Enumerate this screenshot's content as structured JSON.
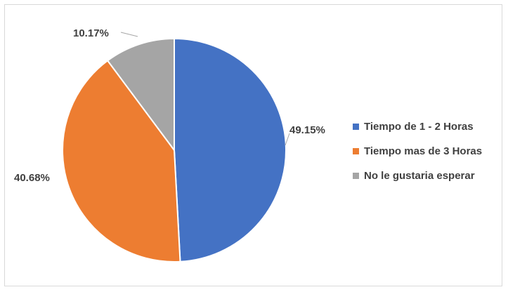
{
  "chart_data": {
    "type": "pie",
    "title": "",
    "categories": [
      "Tiempo de 1 - 2 Horas",
      "Tiempo mas de 3 Horas",
      "No le gustaria esperar"
    ],
    "values": [
      49.15,
      40.68,
      10.17
    ],
    "value_labels": [
      "49.15%",
      "40.68%",
      "10.17%"
    ],
    "colors": [
      "#4472c4",
      "#ed7d31",
      "#a5a5a5"
    ],
    "start_angle_deg": 0,
    "direction": "clockwise",
    "legend_position": "right",
    "data_labels": "outside"
  }
}
